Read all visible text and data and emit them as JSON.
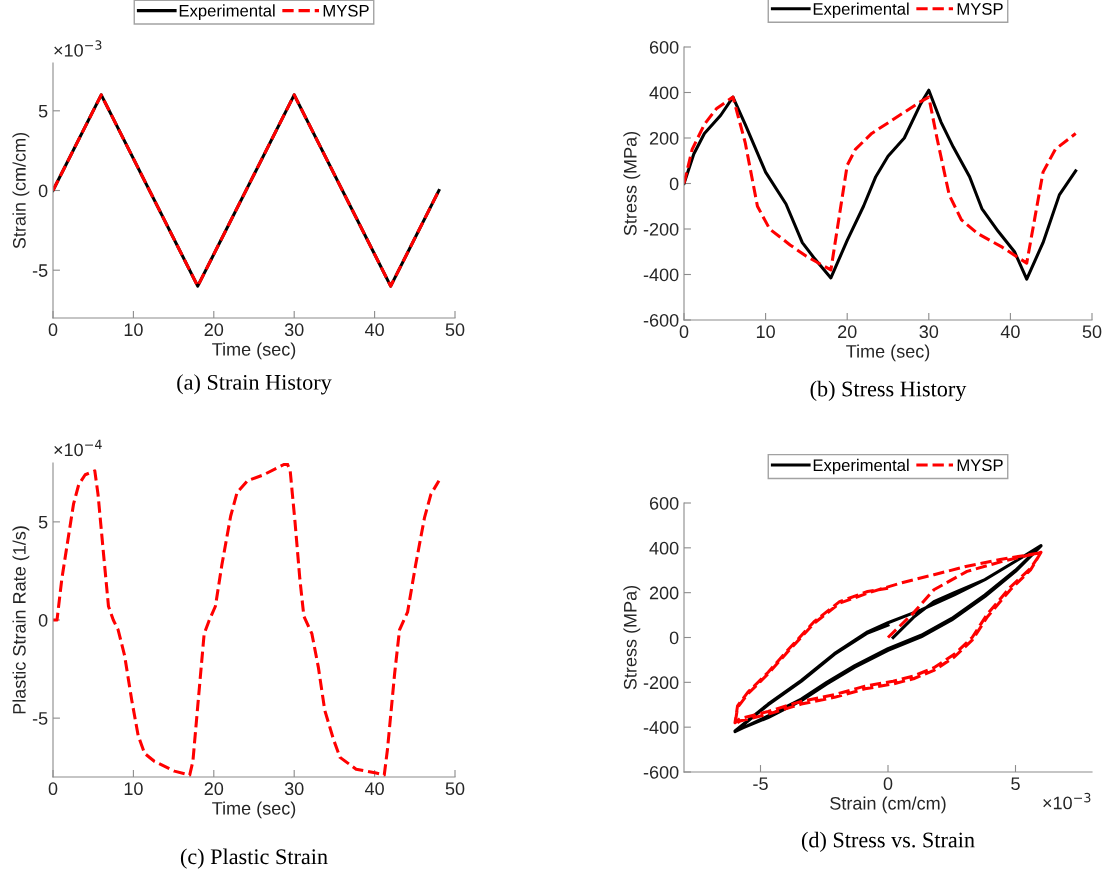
{
  "chart_data": [
    {
      "type": "line",
      "title": "(a) Strain History",
      "xlabel": "Time (sec)",
      "ylabel": "Strain (cm/cm)",
      "xlim": [
        0,
        50
      ],
      "xticks": [
        0,
        10,
        20,
        30,
        40,
        50
      ],
      "ylim": [
        -8,
        8
      ],
      "yticks": [
        -5,
        0,
        5
      ],
      "legend": "top",
      "annotations": [
        "×10$^{−3}$"
      ],
      "series": [
        {
          "name": "Experimental",
          "color": "#000000",
          "line_style": "solid",
          "x": [
            0,
            6,
            18,
            30,
            42,
            48
          ],
          "values": [
            0,
            6,
            -6,
            6,
            -6,
            0
          ]
        },
        {
          "name": "MYSP",
          "color": "#ff0000",
          "line_style": "dashed",
          "x": [
            0,
            6,
            18,
            30,
            42,
            48
          ],
          "values": [
            0,
            6,
            -6,
            6,
            -6,
            0
          ]
        }
      ]
    },
    {
      "type": "line",
      "title": "(b) Stress History",
      "xlabel": "Time (sec)",
      "ylabel": "Stress (MPa)",
      "xlim": [
        0,
        50
      ],
      "xticks": [
        0,
        10,
        20,
        30,
        40,
        50
      ],
      "ylim": [
        -600,
        600
      ],
      "yticks": [
        -600,
        -400,
        -200,
        0,
        200,
        400,
        600
      ],
      "legend": "top",
      "series": [
        {
          "name": "Experimental",
          "color": "#000000",
          "line_style": "solid",
          "x": [
            0,
            1.2,
            2.5,
            4.5,
            6,
            7.5,
            10,
            12.5,
            14.5,
            16,
            18,
            20,
            22,
            23.5,
            25,
            27,
            29,
            30,
            31.5,
            33,
            35,
            36.5,
            38.5,
            40.5,
            42,
            44,
            46,
            48
          ],
          "values": [
            0,
            130,
            220,
            300,
            380,
            260,
            50,
            -90,
            -260,
            -330,
            -415,
            -250,
            -100,
            30,
            120,
            200,
            350,
            410,
            270,
            160,
            30,
            -110,
            -210,
            -300,
            -420,
            -260,
            -50,
            55
          ]
        },
        {
          "name": "MYSP",
          "color": "#ff0000",
          "line_style": "dashed",
          "x": [
            0,
            1,
            2.5,
            4,
            6,
            7.5,
            9,
            10.5,
            13,
            15,
            18,
            19,
            20,
            21,
            23,
            26,
            29,
            30,
            31,
            32.5,
            34,
            36,
            39,
            42,
            43,
            44,
            45.5,
            48
          ],
          "values": [
            0,
            150,
            260,
            330,
            380,
            180,
            -100,
            -200,
            -270,
            -320,
            -380,
            -150,
            80,
            150,
            220,
            290,
            360,
            380,
            200,
            -50,
            -160,
            -220,
            -280,
            -350,
            -150,
            50,
            150,
            220
          ]
        }
      ]
    },
    {
      "type": "line",
      "title": "(c) Plastic Strain",
      "xlabel": "Time (sec)",
      "ylabel": "Plastic Strain Rate (1/s)",
      "xlim": [
        0,
        50
      ],
      "xticks": [
        0,
        10,
        20,
        30,
        40,
        50
      ],
      "ylim": [
        -8,
        8
      ],
      "yticks": [
        -5,
        0,
        5
      ],
      "annotations": [
        "×10$^{−4}$"
      ],
      "series": [
        {
          "color": "#ff0000",
          "line_style": "dashed",
          "x": [
            0,
            0.5,
            1.1,
            1.9,
            2.55,
            3.2,
            4,
            5.2,
            5.6,
            6.3,
            6.9,
            7.5,
            8.1,
            8.9,
            9.8,
            10.6,
            11.4,
            12.6,
            15.1,
            17,
            17.4,
            18,
            18.8,
            19.4,
            20.2,
            21,
            22.1,
            22.9,
            24.2,
            26.2,
            29.1,
            29.5,
            30.1,
            30.7,
            31.2,
            32.2,
            33,
            33.8,
            34.9,
            35.7,
            37.7,
            40.2,
            41.2,
            41.6,
            42.5,
            43.1,
            44.1,
            45.1,
            46.2,
            47,
            48
          ],
          "values": [
            0,
            0,
            2.1,
            4.2,
            5.9,
            6.9,
            7.4,
            7.6,
            6.4,
            3.3,
            0.7,
            0,
            -0.5,
            -1.8,
            -4.1,
            -5.9,
            -6.8,
            -7.2,
            -7.7,
            -7.9,
            -7.2,
            -4.4,
            -0.7,
            -0.05,
            0.7,
            2.8,
            5.3,
            6.5,
            7.1,
            7.4,
            8,
            7.6,
            5,
            2.1,
            0.2,
            -0.7,
            -2.4,
            -4.6,
            -6.1,
            -7,
            -7.6,
            -7.8,
            -7.9,
            -6.6,
            -2.7,
            -0.5,
            0.4,
            2.8,
            5.2,
            6.4,
            7.1
          ]
        }
      ]
    },
    {
      "type": "line",
      "title": "(d) Stress vs. Strain",
      "xlabel": "Strain (cm/cm)",
      "ylabel": "Stress (MPa)",
      "xlim": [
        -8,
        8
      ],
      "xticks": [
        -5,
        0,
        5
      ],
      "ylim": [
        -600,
        600
      ],
      "yticks": [
        -600,
        -400,
        -200,
        0,
        200,
        400,
        600
      ],
      "legend": "top",
      "annotations": [
        "×10$^{−3}$"
      ],
      "series": [
        {
          "name": "Experimental",
          "color": "#000000",
          "line_style": "solid",
          "x": [
            0.2,
            1,
            1.8,
            2.6,
            3.8,
            5,
            6,
            5,
            3.8,
            2.5,
            1.3,
            0,
            -1.3,
            -2.4,
            -3.4,
            -4.7,
            -6,
            -4.7,
            -3.4,
            -2.1,
            -0.8,
            0,
            1.3,
            2.6,
            3.8,
            5,
            6,
            5,
            3.8,
            2.5,
            1.3,
            0,
            -1.3,
            -2.4,
            -3.4,
            -4.7,
            -6,
            -4.7,
            -3.4,
            -2.1,
            -0.8,
            0
          ],
          "values": [
            0,
            90,
            160,
            200,
            258,
            340,
            408,
            295,
            183,
            78,
            3,
            -57,
            -132,
            -207,
            -282,
            -357,
            -417,
            -297,
            -192,
            -72,
            25,
            66,
            123,
            190,
            258,
            340,
            410,
            300,
            190,
            85,
            10,
            -50,
            -125,
            -200,
            -275,
            -350,
            -420,
            -300,
            -195,
            -75,
            20,
            55
          ]
        },
        {
          "name": "MYSP",
          "color": "#ff0000",
          "line_style": "dashed",
          "x": [
            0,
            1,
            1.8,
            3.1,
            4.5,
            6,
            5.6,
            4.8,
            3.9,
            3.3,
            2.6,
            1.8,
            1,
            0.2,
            -0.9,
            -2.1,
            -3.4,
            -4.7,
            -5.8,
            -6,
            -5.9,
            -5.5,
            -4.7,
            -4,
            -2.9,
            -1.9,
            -0.8,
            0.5,
            1.8,
            3.1,
            4.4,
            6,
            5.6,
            4.8,
            3.9,
            3.3,
            2.6,
            1.8,
            1,
            0.2,
            -0.9,
            -2.1,
            -3.4,
            -4.7,
            -5.8,
            -6,
            -5.9,
            -5.5,
            -4.7,
            -4,
            -2.9,
            -1.9,
            -0.8,
            0
          ],
          "values": [
            0,
            110,
            213,
            295,
            340,
            380,
            303,
            213,
            93,
            -12,
            -87,
            -147,
            -184,
            -207,
            -229,
            -267,
            -297,
            -342,
            -372,
            -387,
            -312,
            -252,
            -162,
            -72,
            63,
            153,
            198,
            243,
            280,
            318,
            348,
            378,
            310,
            225,
            105,
            0,
            -75,
            -135,
            -172,
            -195,
            -217,
            -255,
            -285,
            -330,
            -362,
            -380,
            -305,
            -245,
            -155,
            -65,
            70,
            160,
            205,
            220
          ]
        }
      ]
    }
  ]
}
